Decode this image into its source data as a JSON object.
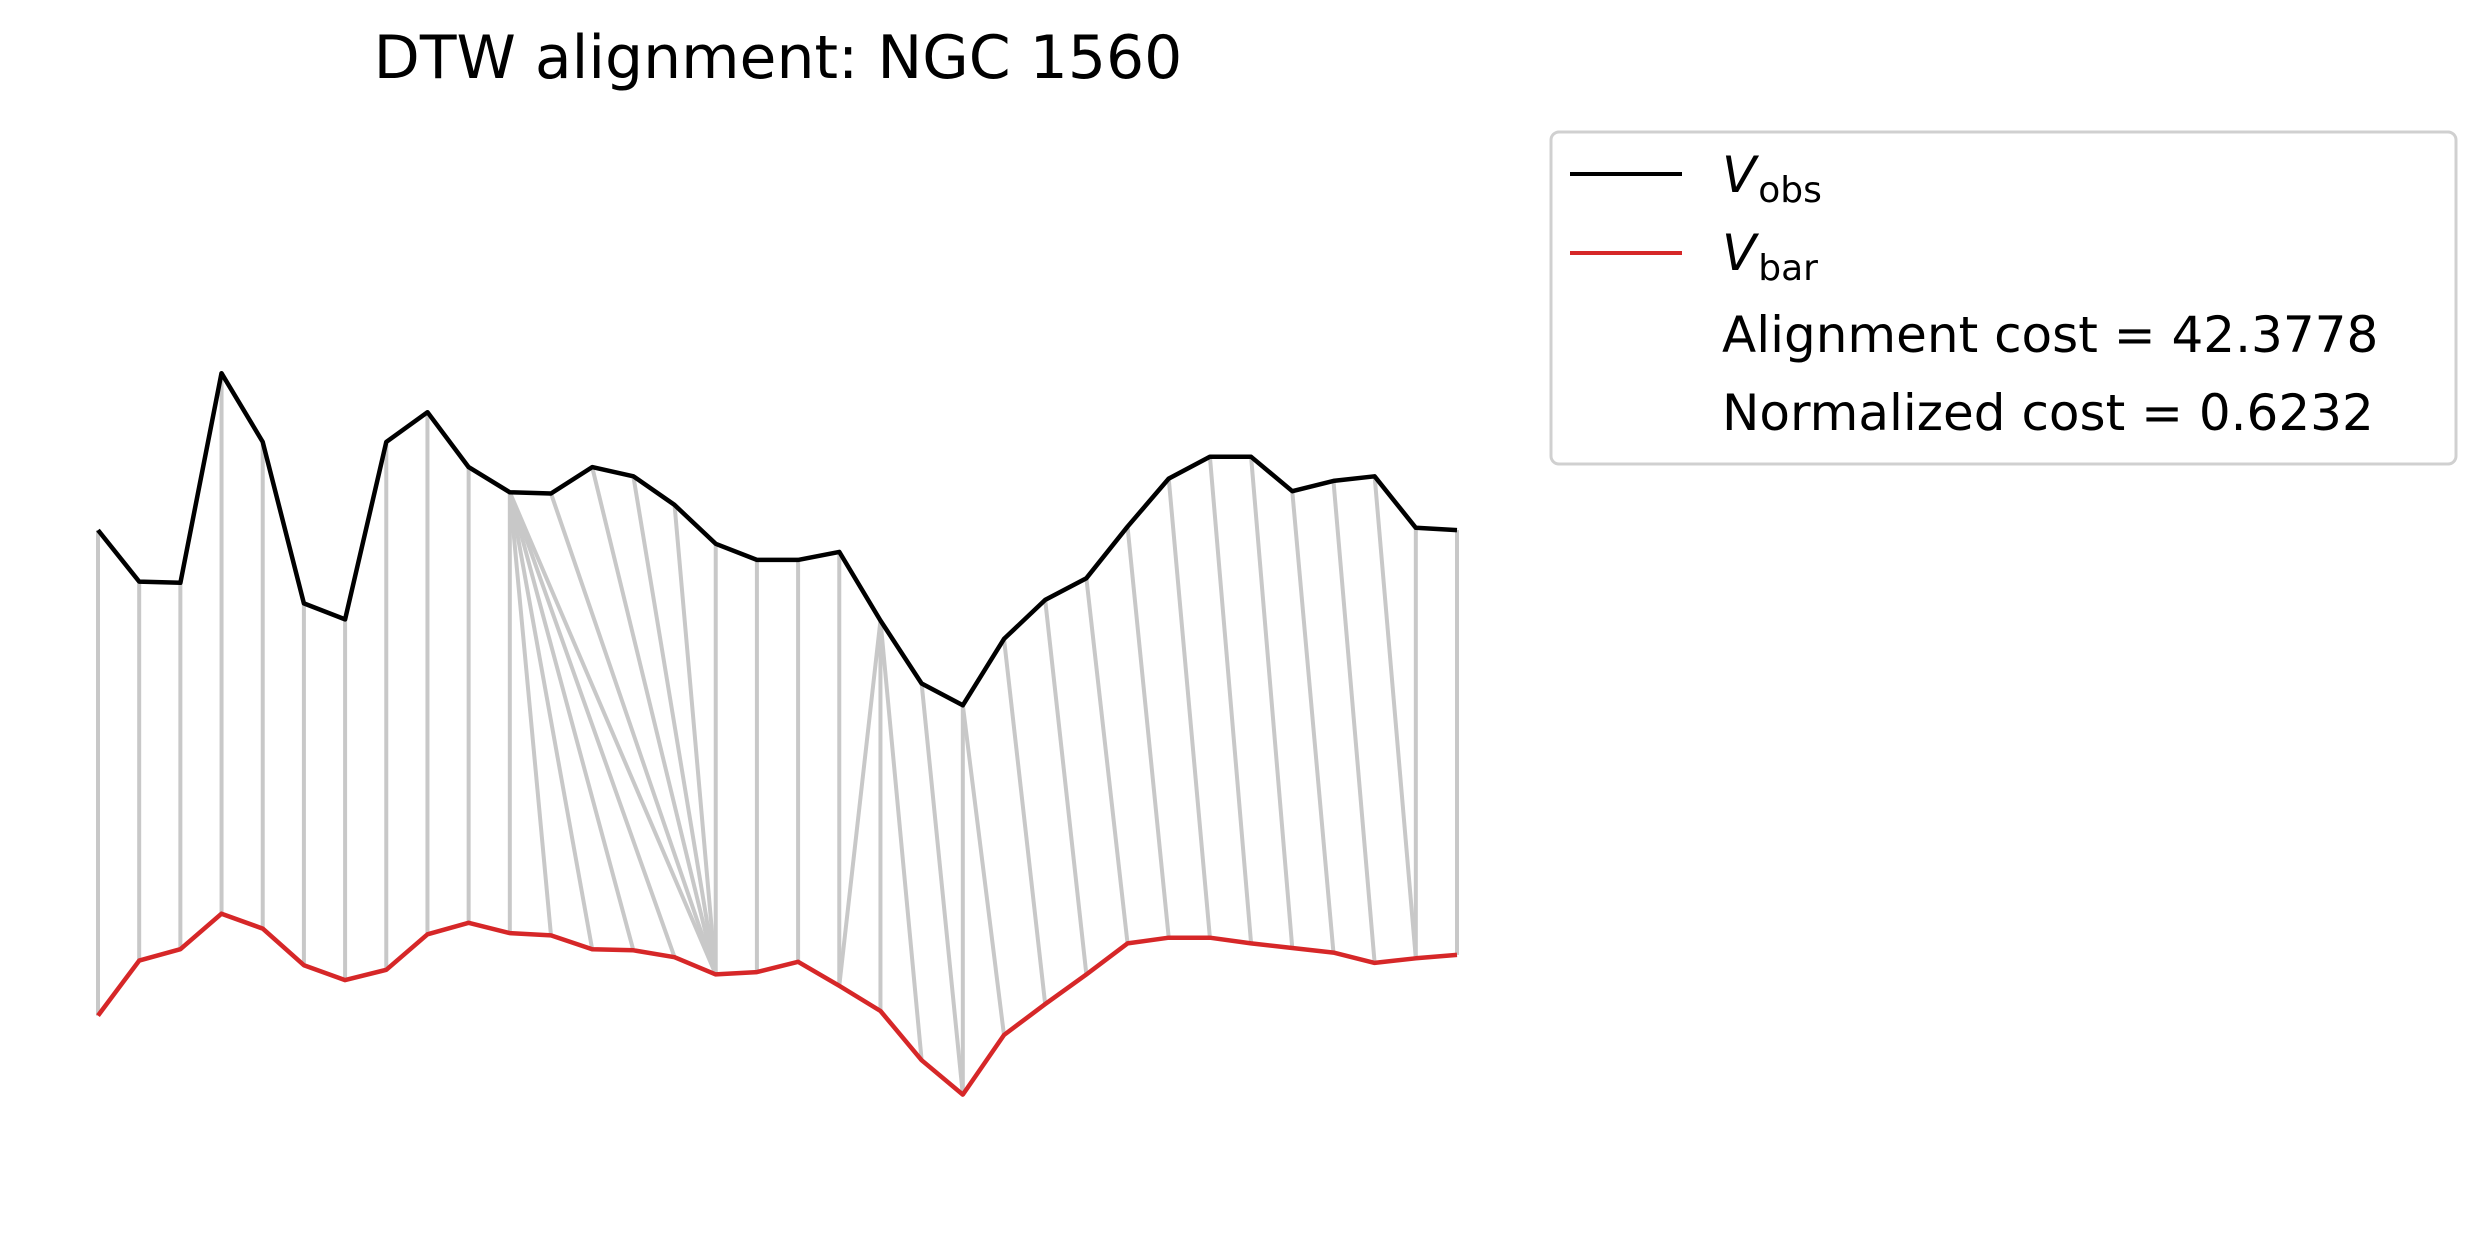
{
  "chart_data": {
    "type": "line",
    "title": "DTW alignment: NGC 1560",
    "axes_visible": false,
    "grid": false,
    "legend_placement": "outside-top-right",
    "series": [
      {
        "name_symbol": "V",
        "name_subscript": "obs",
        "color": "#000000",
        "values": [
          0.62,
          0.575,
          0.574,
          0.757,
          0.697,
          0.556,
          0.542,
          0.697,
          0.723,
          0.675,
          0.653,
          0.652,
          0.675,
          0.667,
          0.642,
          0.608,
          0.594,
          0.594,
          0.601,
          0.541,
          0.486,
          0.467,
          0.525,
          0.559,
          0.578,
          0.623,
          0.665,
          0.684,
          0.684,
          0.654,
          0.663,
          0.667,
          0.622,
          0.62
        ]
      },
      {
        "name_symbol": "V",
        "name_subscript": "bar",
        "color": "#d62728",
        "values": [
          0.196,
          0.244,
          0.254,
          0.285,
          0.272,
          0.24,
          0.227,
          0.236,
          0.267,
          0.277,
          0.268,
          0.266,
          0.254,
          0.253,
          0.247,
          0.232,
          0.234,
          0.243,
          0.222,
          0.2,
          0.157,
          0.127,
          0.179,
          0.206,
          0.232,
          0.259,
          0.264,
          0.264,
          0.259,
          0.255,
          0.251,
          0.242,
          0.246,
          0.249
        ]
      }
    ],
    "alignment_path": [
      [
        0,
        0
      ],
      [
        1,
        1
      ],
      [
        2,
        2
      ],
      [
        3,
        3
      ],
      [
        4,
        4
      ],
      [
        5,
        5
      ],
      [
        6,
        6
      ],
      [
        7,
        7
      ],
      [
        8,
        8
      ],
      [
        9,
        9
      ],
      [
        10,
        10
      ],
      [
        10,
        11
      ],
      [
        10,
        12
      ],
      [
        10,
        13
      ],
      [
        10,
        14
      ],
      [
        10,
        15
      ],
      [
        11,
        15
      ],
      [
        12,
        15
      ],
      [
        13,
        15
      ],
      [
        14,
        15
      ],
      [
        15,
        15
      ],
      [
        16,
        16
      ],
      [
        17,
        17
      ],
      [
        18,
        18
      ],
      [
        19,
        18
      ],
      [
        19,
        19
      ],
      [
        19,
        20
      ],
      [
        20,
        21
      ],
      [
        21,
        21
      ],
      [
        21,
        22
      ],
      [
        22,
        23
      ],
      [
        23,
        24
      ],
      [
        24,
        25
      ],
      [
        25,
        26
      ],
      [
        26,
        27
      ],
      [
        27,
        28
      ],
      [
        28,
        29
      ],
      [
        29,
        30
      ],
      [
        30,
        31
      ],
      [
        31,
        32
      ],
      [
        32,
        32
      ],
      [
        33,
        33
      ]
    ],
    "legend_extra": [
      "Alignment cost = 42.3778",
      "Normalized cost = 0.6232"
    ]
  }
}
